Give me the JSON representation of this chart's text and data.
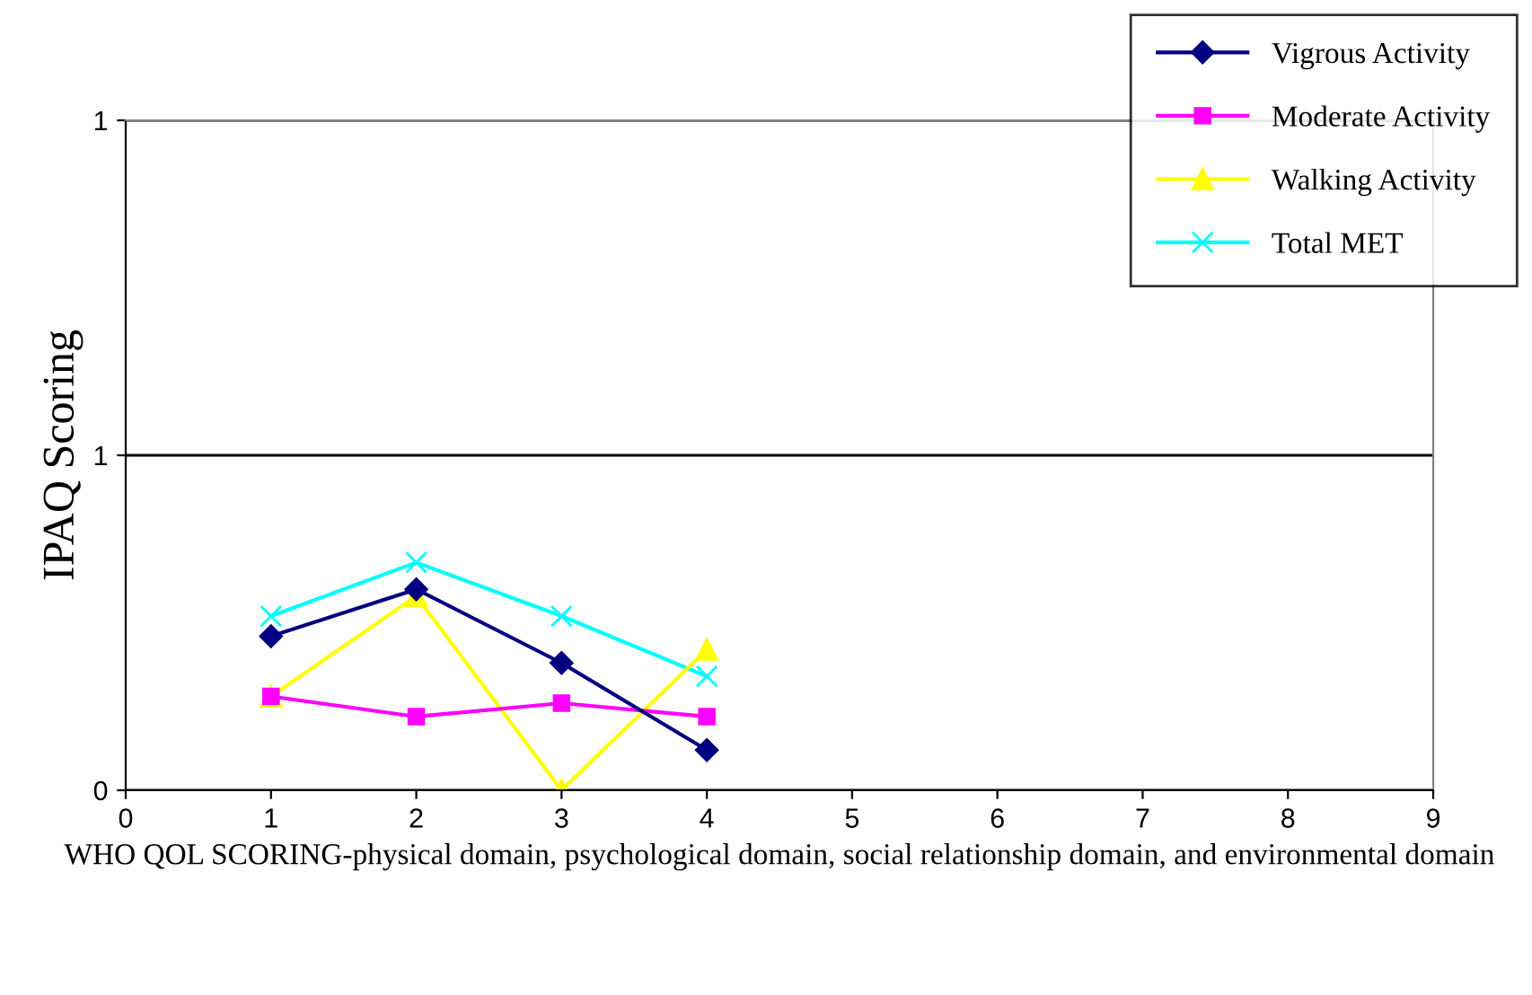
{
  "chart_data": {
    "type": "line",
    "xlabel": "WHO QOL SCORING-physical domain, psychological domain, social relationship domain, and environmental domain",
    "ylabel": "IPAQ Scoring",
    "x": [
      1,
      2,
      3,
      4
    ],
    "series": [
      {
        "name": "Vigrous Activity",
        "color": "#000080",
        "marker": "diamond",
        "values": [
          0.23,
          0.3,
          0.19,
          0.06
        ]
      },
      {
        "name": "Moderate Activity",
        "color": "#ff00ff",
        "marker": "square",
        "values": [
          0.14,
          0.11,
          0.13,
          0.11
        ]
      },
      {
        "name": "Walking Activity",
        "color": "#ffff00",
        "marker": "triangle",
        "values": [
          0.14,
          0.29,
          0.0,
          0.21
        ]
      },
      {
        "name": "Total MET",
        "color": "#00ffff",
        "marker": "cross",
        "values": [
          0.26,
          0.34,
          0.26,
          0.17
        ]
      }
    ],
    "xlim": [
      0,
      9
    ],
    "xticks": [
      0,
      1,
      2,
      3,
      4,
      5,
      6,
      7,
      8,
      9
    ],
    "ylim": [
      0,
      1
    ],
    "yticks": [
      {
        "value": 0,
        "label": "0"
      },
      {
        "value": 0.5,
        "label": "1"
      },
      {
        "value": 1,
        "label": "1"
      }
    ],
    "grid": "y",
    "legend": "top right",
    "line_style": "solid"
  }
}
